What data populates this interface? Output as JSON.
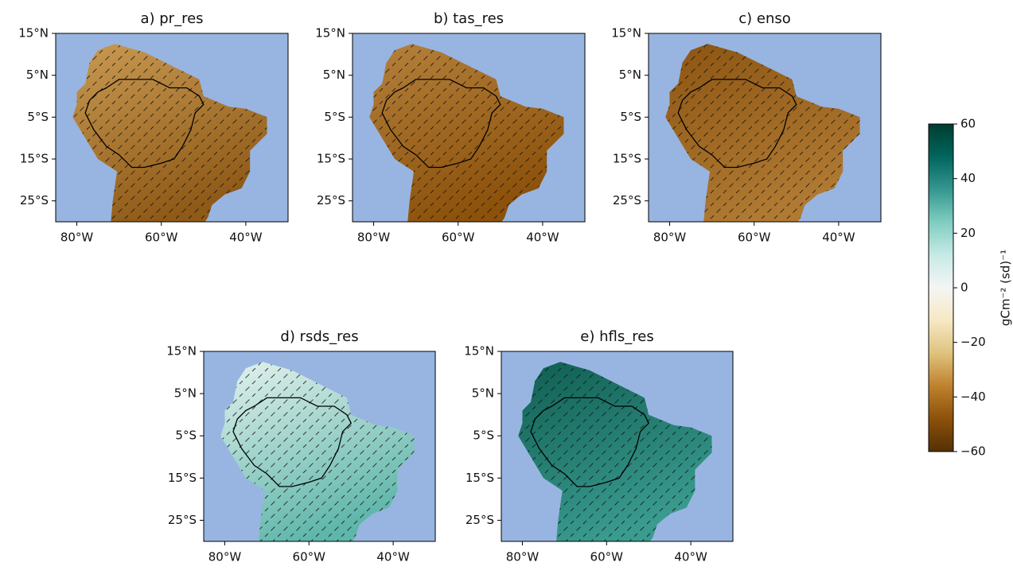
{
  "panels": [
    {
      "title": "a) pr_res"
    },
    {
      "title": "b) tas_res"
    },
    {
      "title": "c) enso"
    },
    {
      "title": "d) rsds_res"
    },
    {
      "title": "e) hfls_res"
    }
  ],
  "map": {
    "xlim": [
      -85,
      -30
    ],
    "xticks": [
      {
        "value": -80,
        "label": "80°W"
      },
      {
        "value": -60,
        "label": "60°W"
      },
      {
        "value": -40,
        "label": "40°W"
      }
    ],
    "ylim": [
      -30,
      15
    ],
    "yticks": [
      {
        "value": 15,
        "label": "15°N"
      },
      {
        "value": 5,
        "label": "5°N"
      },
      {
        "value": -5,
        "label": "5°S"
      },
      {
        "value": -15,
        "label": "15°S"
      },
      {
        "value": -25,
        "label": "25°S"
      }
    ]
  },
  "colorbar": {
    "lim": [
      -60,
      60
    ],
    "ticks": [
      {
        "value": 60,
        "label": "60"
      },
      {
        "value": 40,
        "label": "40"
      },
      {
        "value": 20,
        "label": "20"
      },
      {
        "value": 0,
        "label": "0"
      },
      {
        "value": -20,
        "label": "−20"
      },
      {
        "value": -40,
        "label": "−40"
      },
      {
        "value": -60,
        "label": "−60"
      }
    ],
    "label": "gCm⁻² (sd)⁻¹"
  }
}
